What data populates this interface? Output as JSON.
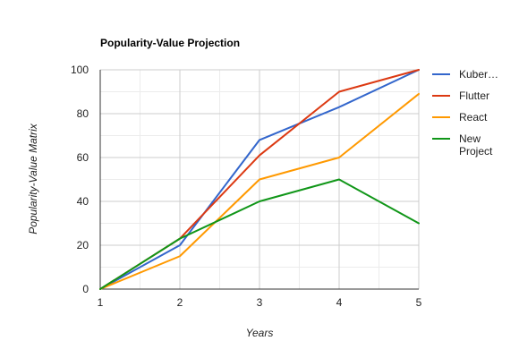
{
  "chart_data": {
    "type": "line",
    "title": "Popularity-Value Projection",
    "xlabel": "Years",
    "ylabel": "Popularity-Value Matrix",
    "x": [
      1,
      2,
      3,
      4,
      5
    ],
    "xlim": [
      1,
      5
    ],
    "ylim": [
      0,
      100
    ],
    "x_ticks": [
      "1",
      "2",
      "3",
      "4",
      "5"
    ],
    "y_ticks": [
      "0",
      "20",
      "40",
      "60",
      "80",
      "100"
    ],
    "grid": true,
    "legend_position": "right",
    "series": [
      {
        "name": "Kuber…",
        "color": "#3366cc",
        "values": [
          0,
          20,
          68,
          83,
          100
        ]
      },
      {
        "name": "Flutter",
        "color": "#dc3912",
        "values": [
          0,
          23,
          61,
          90,
          100
        ]
      },
      {
        "name": "React",
        "color": "#ff9900",
        "values": [
          0,
          15,
          50,
          60,
          89
        ]
      },
      {
        "name": "New Project",
        "legend_lines": [
          "New",
          "Project"
        ],
        "color": "#109618",
        "values": [
          0,
          23,
          40,
          50,
          30
        ]
      }
    ]
  }
}
